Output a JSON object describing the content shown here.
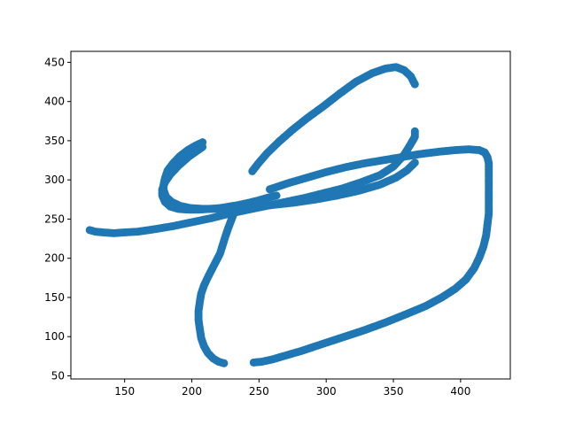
{
  "chart_data": {
    "type": "scatter",
    "title": "",
    "xlabel": "",
    "ylabel": "",
    "xlim": [
      110,
      437
    ],
    "ylim": [
      46,
      464
    ],
    "xticks": [
      150,
      200,
      250,
      300,
      350,
      400
    ],
    "yticks": [
      50,
      100,
      150,
      200,
      250,
      300,
      350,
      400,
      450
    ],
    "xtick_labels": [
      "150",
      "200",
      "250",
      "300",
      "350",
      "400"
    ],
    "ytick_labels": [
      "50",
      "100",
      "150",
      "200",
      "250",
      "300",
      "350",
      "400",
      "450"
    ],
    "grid": false,
    "legend": "none",
    "marker_color": "#1f77b4",
    "strokes": [
      {
        "points": [
          [
            208,
            348
          ],
          [
            203,
            344
          ],
          [
            197,
            338
          ],
          [
            191,
            330
          ],
          [
            186,
            321
          ],
          [
            182,
            312
          ],
          [
            180,
            302
          ],
          [
            179,
            294
          ],
          [
            179,
            287
          ],
          [
            181,
            278
          ],
          [
            185,
            272
          ],
          [
            191,
            267
          ],
          [
            199,
            264
          ],
          [
            208,
            263
          ],
          [
            216,
            263
          ],
          [
            224,
            263
          ],
          [
            232,
            263
          ]
        ]
      },
      {
        "points": [
          [
            124,
            236
          ],
          [
            128,
            234
          ],
          [
            134,
            233
          ],
          [
            142,
            232
          ],
          [
            150,
            233
          ],
          [
            160,
            234
          ],
          [
            172,
            237
          ],
          [
            186,
            241
          ],
          [
            200,
            246
          ],
          [
            214,
            251
          ],
          [
            228,
            257
          ],
          [
            242,
            262
          ],
          [
            256,
            267
          ],
          [
            270,
            272
          ],
          [
            284,
            277
          ],
          [
            298,
            283
          ],
          [
            312,
            289
          ],
          [
            326,
            297
          ],
          [
            340,
            306
          ],
          [
            350,
            317
          ],
          [
            358,
            332
          ],
          [
            363,
            346
          ],
          [
            366,
            355
          ],
          [
            366,
            362
          ]
        ]
      },
      {
        "points": [
          [
            263,
            280
          ],
          [
            256,
            277
          ],
          [
            250,
            274
          ],
          [
            243,
            271
          ],
          [
            235,
            268
          ],
          [
            228,
            266
          ],
          [
            221,
            264
          ],
          [
            213,
            263
          ],
          [
            205,
            262
          ],
          [
            198,
            262
          ],
          [
            190,
            263
          ],
          [
            184,
            266
          ],
          [
            180,
            272
          ],
          [
            178,
            280
          ],
          [
            178,
            288
          ],
          [
            180,
            297
          ],
          [
            184,
            307
          ],
          [
            190,
            318
          ],
          [
            198,
            330
          ],
          [
            208,
            342
          ]
        ]
      },
      {
        "points": [
          [
            245,
            311
          ],
          [
            249,
            320
          ],
          [
            256,
            334
          ],
          [
            265,
            349
          ],
          [
            275,
            364
          ],
          [
            286,
            379
          ],
          [
            298,
            394
          ],
          [
            310,
            410
          ],
          [
            322,
            425
          ],
          [
            334,
            436
          ],
          [
            344,
            442
          ],
          [
            352,
            444
          ],
          [
            358,
            440
          ],
          [
            363,
            432
          ],
          [
            365,
            425
          ],
          [
            366,
            422
          ]
        ]
      },
      {
        "points": [
          [
            233,
            263
          ],
          [
            231,
            256
          ],
          [
            229,
            247
          ],
          [
            227,
            238
          ],
          [
            225,
            228
          ],
          [
            223,
            217
          ],
          [
            221,
            206
          ],
          [
            218,
            196
          ],
          [
            215,
            186
          ],
          [
            212,
            176
          ],
          [
            209,
            165
          ],
          [
            207,
            155
          ],
          [
            206,
            145
          ],
          [
            205,
            133
          ],
          [
            205,
            121
          ],
          [
            206,
            109
          ],
          [
            207,
            98
          ],
          [
            209,
            88
          ],
          [
            212,
            79
          ],
          [
            216,
            72
          ],
          [
            220,
            68
          ],
          [
            224,
            66
          ]
        ]
      },
      {
        "points": [
          [
            246,
            67
          ],
          [
            252,
            68
          ],
          [
            260,
            71
          ],
          [
            270,
            76
          ],
          [
            282,
            82
          ],
          [
            296,
            90
          ],
          [
            312,
            99
          ],
          [
            328,
            108
          ],
          [
            344,
            118
          ],
          [
            360,
            129
          ],
          [
            374,
            139
          ],
          [
            386,
            150
          ],
          [
            396,
            161
          ],
          [
            404,
            173
          ],
          [
            410,
            187
          ],
          [
            414,
            201
          ],
          [
            417,
            215
          ],
          [
            419,
            229
          ],
          [
            420,
            243
          ],
          [
            421,
            257
          ],
          [
            421,
            271
          ],
          [
            421,
            285
          ],
          [
            421,
            299
          ],
          [
            421,
            311
          ],
          [
            421,
            321
          ],
          [
            420,
            329
          ],
          [
            418,
            335
          ],
          [
            414,
            338
          ],
          [
            406,
            339
          ],
          [
            396,
            338
          ],
          [
            384,
            336
          ],
          [
            370,
            333
          ],
          [
            356,
            329
          ],
          [
            342,
            325
          ],
          [
            328,
            321
          ],
          [
            314,
            316
          ],
          [
            300,
            310
          ],
          [
            286,
            303
          ],
          [
            272,
            296
          ],
          [
            258,
            288
          ]
        ]
      },
      {
        "points": [
          [
            232,
            263
          ],
          [
            245,
            265
          ],
          [
            260,
            268
          ],
          [
            276,
            271
          ],
          [
            292,
            275
          ],
          [
            308,
            280
          ],
          [
            324,
            286
          ],
          [
            340,
            294
          ],
          [
            352,
            303
          ],
          [
            360,
            312
          ],
          [
            366,
            322
          ]
        ]
      }
    ]
  }
}
